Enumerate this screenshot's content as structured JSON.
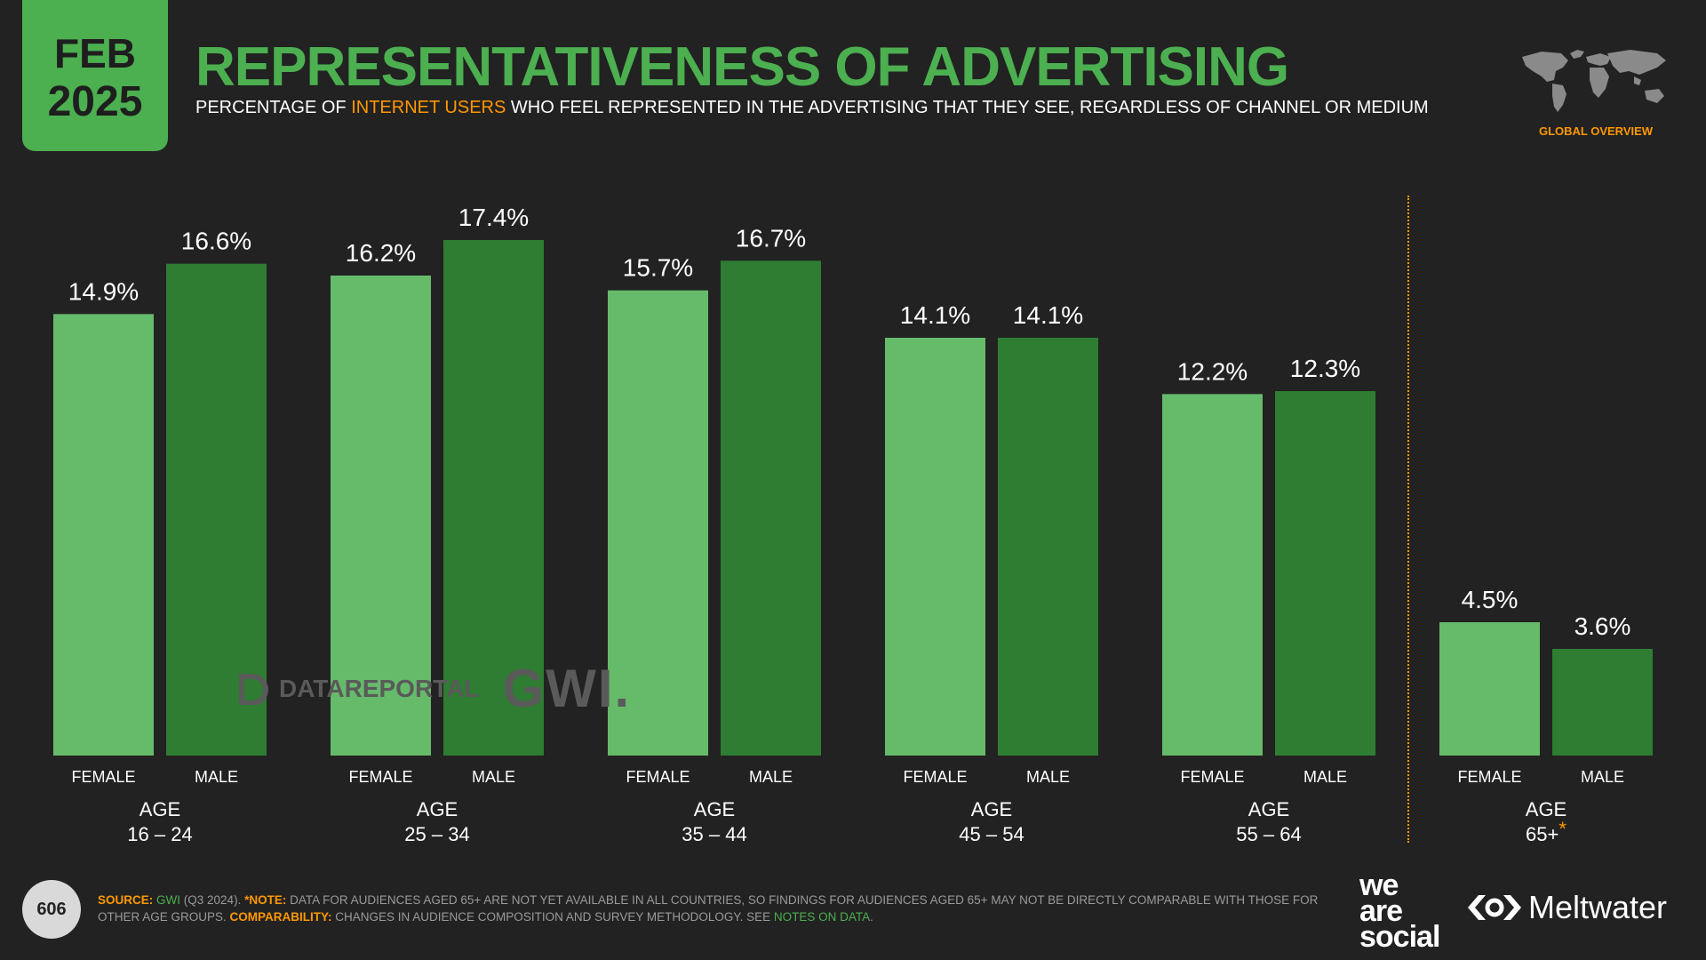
{
  "header": {
    "month": "FEB",
    "year": "2025",
    "title": "REPRESENTATIVENESS OF ADVERTISING",
    "subtitle_pre": "PERCENTAGE OF ",
    "subtitle_highlight": "INTERNET USERS",
    "subtitle_post": " WHO FEEL REPRESENTED IN THE ADVERTISING THAT THEY SEE, REGARDLESS OF CHANNEL OR MEDIUM",
    "region": "GLOBAL OVERVIEW"
  },
  "watermark": {
    "datareportal": "DATAREPORTAL",
    "gwi": "GWI."
  },
  "chart_data": {
    "type": "bar",
    "categories": [
      "16 – 24",
      "25 – 34",
      "35 – 44",
      "45 – 54",
      "55 – 64",
      "65+"
    ],
    "group_prefix": "AGE",
    "footnote_marks": [
      "",
      "",
      "",
      "",
      "",
      "*"
    ],
    "series": [
      {
        "name": "FEMALE",
        "values": [
          14.9,
          16.2,
          15.7,
          14.1,
          12.2,
          4.5
        ],
        "labels": [
          "14.9%",
          "16.2%",
          "15.7%",
          "14.1%",
          "12.2%",
          "4.5%"
        ]
      },
      {
        "name": "MALE",
        "values": [
          16.6,
          17.4,
          16.7,
          14.1,
          12.3,
          3.6
        ],
        "labels": [
          "16.6%",
          "17.4%",
          "16.7%",
          "14.1%",
          "12.3%",
          "3.6%"
        ]
      }
    ],
    "colors": [
      "#66bb6a",
      "#2e7d32"
    ],
    "ylim": [
      0,
      18
    ],
    "grid": false,
    "legend": "none"
  },
  "footer": {
    "source_label": "SOURCE:",
    "source_value": "GWI",
    "source_detail": " (Q3 2024). ",
    "note_label": "*NOTE:",
    "note_text": " DATA FOR AUDIENCES AGED 65+ ARE NOT YET AVAILABLE IN ALL COUNTRIES, SO FINDINGS FOR AUDIENCES AGED 65+ MAY NOT BE DIRECTLY COMPARABLE WITH THOSE FOR OTHER AGE GROUPS. ",
    "comparability_label": "COMPARABILITY:",
    "comparability_text": " CHANGES IN AUDIENCE COMPOSITION AND SURVEY METHODOLOGY. SEE ",
    "notes_link": "NOTES ON DATA",
    "end": ".",
    "page_number": "606"
  },
  "brands": {
    "was_line1": "we",
    "was_line2": "are",
    "was_line3": "social",
    "meltwater": "Meltwater"
  },
  "colors": {
    "accent": "#4caf50",
    "highlight": "#ff9800",
    "background": "#222222"
  }
}
